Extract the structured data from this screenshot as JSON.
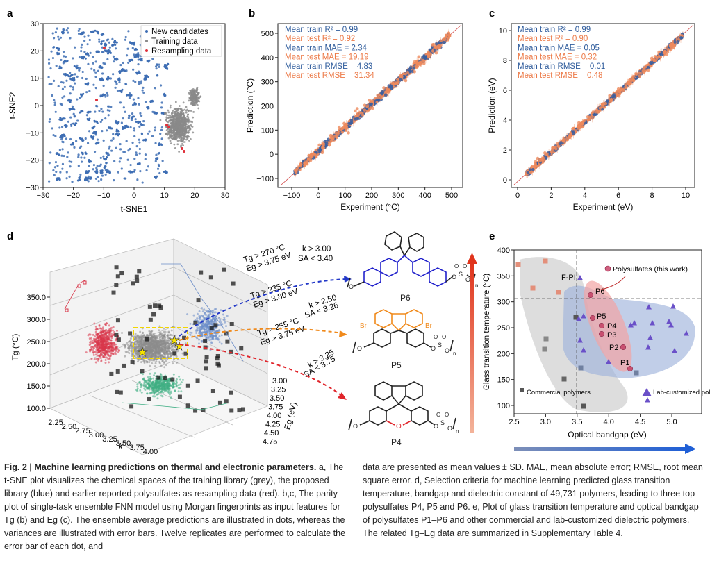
{
  "panel_a": {
    "letter": "a",
    "xlabel": "t-SNE1",
    "ylabel": "t-SNE2",
    "xticks": [
      "−30",
      "−20",
      "−10",
      "0",
      "10",
      "20",
      "30"
    ],
    "yticks": [
      "30",
      "20",
      "10",
      "0",
      "−10",
      "−20",
      "−30"
    ],
    "legend": [
      "New candidates",
      "Training data",
      "Resampling data"
    ],
    "colors": {
      "new": "#3e6eb4",
      "training": "#8a8a8a",
      "resampling": "#e0303a"
    }
  },
  "panel_b": {
    "letter": "b",
    "xlabel": "Experiment (°C)",
    "ylabel": "Prediction (°C)",
    "xticks": [
      "−100",
      "0",
      "100",
      "200",
      "300",
      "400",
      "500"
    ],
    "yticks": [
      "500",
      "400",
      "300",
      "200",
      "100",
      "0",
      "−100"
    ],
    "stats": [
      "Mean train R² = 0.99",
      "Mean test R² = 0.92",
      "Mean train MAE = 2.34",
      "Mean test MAE = 19.19",
      "Mean train RMSE = 4.83",
      "Mean test RMSE = 31.34"
    ]
  },
  "panel_c": {
    "letter": "c",
    "xlabel": "Experiment (eV)",
    "ylabel": "Prediction (eV)",
    "xticks": [
      "0",
      "2",
      "4",
      "6",
      "8",
      "10"
    ],
    "yticks": [
      "10",
      "8",
      "6",
      "4",
      "2",
      "0"
    ],
    "stats": [
      "Mean train R² = 0.99",
      "Mean test R² = 0.90",
      "Mean train MAE = 0.05",
      "Mean test MAE = 0.32",
      "Mean train RMSE = 0.01",
      "Mean test RMSE = 0.48"
    ]
  },
  "panel_d": {
    "letter": "d",
    "zlabel": "Tg (°C)",
    "xlabel": "k",
    "ylabel": "Eg (eV)",
    "zticks": [
      "350.0",
      "300.0",
      "250.0",
      "200.0",
      "150.0",
      "100.0"
    ],
    "xticks": [
      "2.25",
      "2.50",
      "2.75",
      "3.00",
      "3.25",
      "3.50",
      "3.75",
      "4.00"
    ],
    "yticks": [
      "3.00",
      "3.25",
      "3.50",
      "3.75",
      "4.00",
      "4.25",
      "4.50",
      "4.75"
    ],
    "criteria": [
      {
        "left1": "Tg > 270 °C",
        "left2": "Eg > 3.75 eV",
        "right1": "k > 3.00",
        "right2": "SA < 3.40",
        "color": "#2238c8",
        "target": "P6"
      },
      {
        "left1": "Tg > 235 °C",
        "left2": "Eg > 3.80 eV",
        "right1": "k > 2.50",
        "right2": "SA < 3.26",
        "color": "#f08a1c",
        "target": "P5"
      },
      {
        "left1": "Tg > 255 °C",
        "left2": "Eg > 3.75 eV",
        "right1": "k > 3.25",
        "right2": "SA < 3.75",
        "color": "#e0242a",
        "target": "P4"
      }
    ],
    "molecules": [
      "P6",
      "P5",
      "P4"
    ],
    "atom_labels": {
      "br": "Br",
      "o": "O",
      "s": "S",
      "n": "n"
    }
  },
  "panel_e": {
    "letter": "e",
    "xlabel": "Optical bandgap (eV)",
    "ylabel": "Glass transition temperature (°C)",
    "xticks": [
      "2.5",
      "3.0",
      "3.5",
      "4.0",
      "4.5",
      "5.0"
    ],
    "yticks": [
      "400",
      "350",
      "300",
      "250",
      "200",
      "150",
      "100"
    ],
    "labels": {
      "polysulfates": "Polysulfates (this work)",
      "commercial": "Commercial polymers",
      "lab": "Lab-customized polymers",
      "fpi": "F-PI"
    },
    "points": [
      "P6",
      "P5",
      "P4",
      "P3",
      "P2",
      "P1"
    ]
  },
  "caption": {
    "title": "Fig. 2 | Machine learning predictions on thermal and electronic parameters.",
    "left": "a, The t-SNE plot visualizes the chemical spaces of the training library (grey), the proposed library (blue) and earlier reported polysulfates as resampling data (red). b,c, The parity plot of single-task ensemble FNN model using Morgan fingerprints as input features for Tg (b) and Eg (c). The ensemble average predictions are illustrated in dots, whereas the variances are illustrated with error bars. Twelve replicates are performed to calculate the error bar of each dot, and",
    "right": "data are presented as mean values ± SD. MAE, mean absolute error; RMSE, root mean square error. d, Selection criteria for machine learning predicted glass transition temperature, bandgap and dielectric constant of 49,731 polymers, leading to three top polysulfates P4, P5 and P6. e, Plot of glass transition temperature and optical bandgap of polysulfates P1–P6 and other commercial and lab-customized dielectric polymers. The related Tg–Eg data are summarized in Supplementary Table 4."
  }
}
